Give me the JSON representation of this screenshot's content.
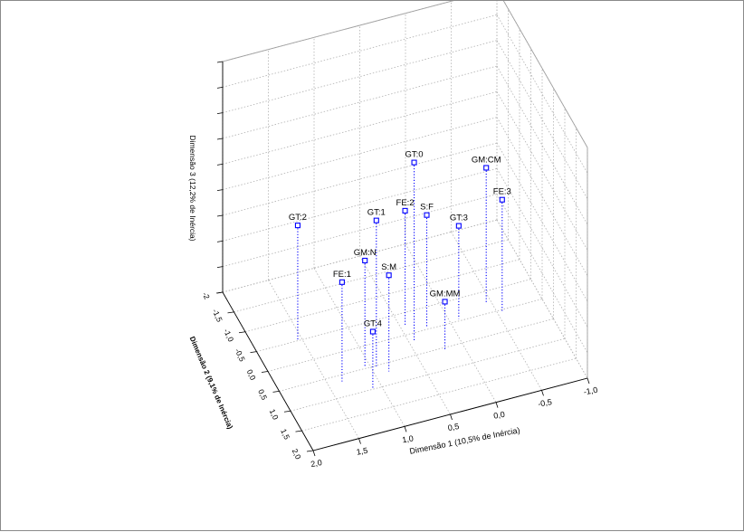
{
  "chart_data": {
    "type": "scatter",
    "subtype": "3d-scatter-with-droplines",
    "title": "",
    "xlabel": "Dimensão 1 (10,5% de Inércia)",
    "ylabel": "Dimensão 2 (9,1% de Inércia)",
    "zlabel": "Dimensão 3 (12,2% de Inércia)",
    "x_ticks": [
      "2,0",
      "1,5",
      "1,0",
      "0,5",
      "0,0",
      "-0,5",
      "-1,0"
    ],
    "y_ticks": [
      "-2",
      "-1,5",
      "-1,0",
      "-0,5",
      "0,0",
      "0,5",
      "1,0",
      "1,5",
      "2,0"
    ],
    "xlim": [
      2.0,
      -1.0
    ],
    "ylim": [
      -2.0,
      2.0
    ],
    "zlim": [
      -1.2,
      2.4
    ],
    "grid": true,
    "marker_color": "#0000ff",
    "dropline_color": "#0000ff",
    "grid_color": "#b0b0b0",
    "points": [
      {
        "label": "GT:0",
        "x": 0.45,
        "y": 0.2,
        "z": 1.6
      },
      {
        "label": "GT:1",
        "x": 0.95,
        "y": 0.55,
        "z": 1.1
      },
      {
        "label": "GT:2",
        "x": 1.55,
        "y": -0.5,
        "z": 0.6
      },
      {
        "label": "GT:3",
        "x": -0.1,
        "y": -0.05,
        "z": 0.25
      },
      {
        "label": "GT:4",
        "x": 1.1,
        "y": 1.0,
        "z": -0.3
      },
      {
        "label": "FE:1",
        "x": 1.35,
        "y": 0.65,
        "z": 0.35
      },
      {
        "label": "FE:2",
        "x": 0.45,
        "y": -0.2,
        "z": 0.6
      },
      {
        "label": "FE:3",
        "x": -0.55,
        "y": 0.05,
        "z": 0.55
      },
      {
        "label": "GM:N",
        "x": 1.05,
        "y": 0.45,
        "z": 0.45
      },
      {
        "label": "GM:CM",
        "x": -0.45,
        "y": -0.25,
        "z": 0.9
      },
      {
        "label": "GM:MM",
        "x": 0.2,
        "y": 0.55,
        "z": -0.45
      },
      {
        "label": "S:M",
        "x": 0.85,
        "y": 0.7,
        "z": 0.3
      },
      {
        "label": "S:F",
        "x": 0.25,
        "y": -0.05,
        "z": 0.55
      }
    ]
  }
}
